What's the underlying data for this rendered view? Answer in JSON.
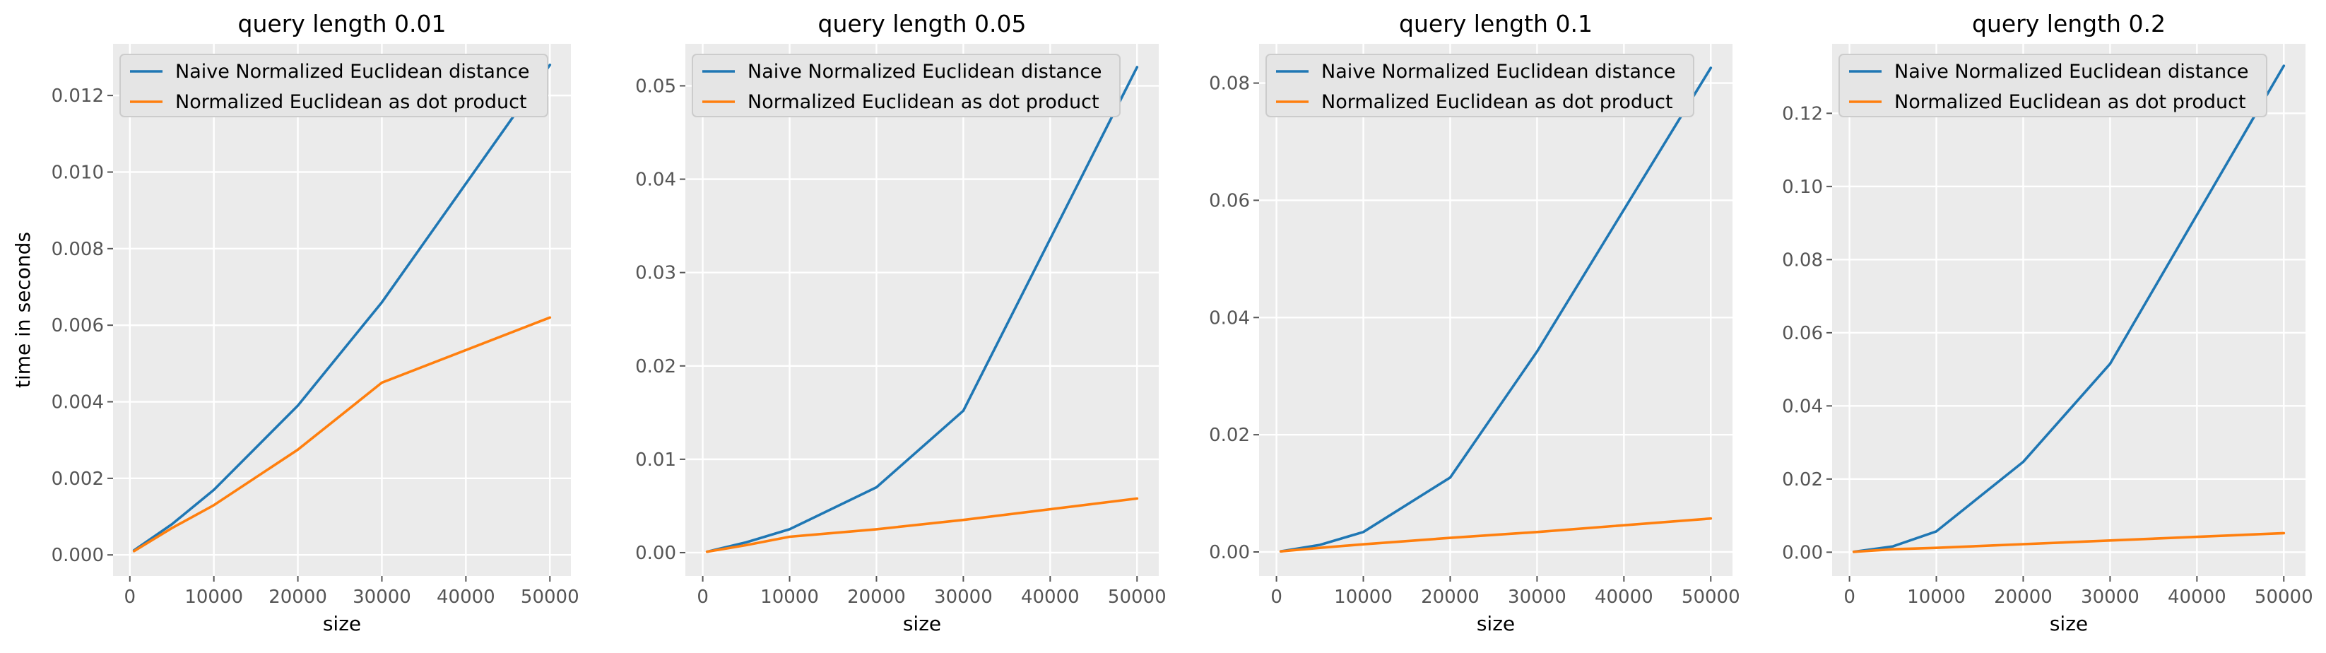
{
  "colors": {
    "naive": "#1f77b4",
    "dot": "#ff7f0e"
  },
  "chart_data": [
    {
      "type": "line",
      "title": "query length 0.01",
      "xlabel": "size",
      "ylabel": "time in seconds",
      "x": [
        500,
        5000,
        10000,
        20000,
        30000,
        50000
      ],
      "xlim": [
        -2000,
        52500
      ],
      "ylim": [
        -0.00055,
        0.01335
      ],
      "xticks": [
        0,
        10000,
        20000,
        30000,
        40000,
        50000
      ],
      "xtick_labels": [
        "0",
        "10000",
        "20000",
        "30000",
        "40000",
        "50000"
      ],
      "yticks": [
        0,
        0.002,
        0.004,
        0.006,
        0.008,
        0.01,
        0.012
      ],
      "ytick_labels": [
        "0.000",
        "0.002",
        "0.004",
        "0.006",
        "0.008",
        "0.010",
        "0.012"
      ],
      "legend_position": "upper-left",
      "grid": true,
      "series": [
        {
          "name": "Naive Normalized Euclidean distance",
          "color_key": "naive",
          "values": [
            0.00012,
            0.0008,
            0.0017,
            0.0039,
            0.0066,
            0.0128
          ]
        },
        {
          "name": "Normalized Euclidean as dot product",
          "color_key": "dot",
          "values": [
            0.0001,
            0.0007,
            0.0013,
            0.00275,
            0.0045,
            0.0062
          ]
        }
      ]
    },
    {
      "type": "line",
      "title": "query length 0.05",
      "xlabel": "size",
      "ylabel": "",
      "x": [
        500,
        5000,
        10000,
        20000,
        30000,
        50000
      ],
      "xlim": [
        -2000,
        52500
      ],
      "ylim": [
        -0.0025,
        0.0545
      ],
      "xticks": [
        0,
        10000,
        20000,
        30000,
        40000,
        50000
      ],
      "xtick_labels": [
        "0",
        "10000",
        "20000",
        "30000",
        "40000",
        "50000"
      ],
      "yticks": [
        0,
        0.01,
        0.02,
        0.03,
        0.04,
        0.05
      ],
      "ytick_labels": [
        "0.00",
        "0.01",
        "0.02",
        "0.03",
        "0.04",
        "0.05"
      ],
      "legend_position": "upper-left",
      "grid": true,
      "series": [
        {
          "name": "Naive Normalized Euclidean distance",
          "color_key": "naive",
          "values": [
            0.0001,
            0.0011,
            0.0025,
            0.007,
            0.0152,
            0.052
          ]
        },
        {
          "name": "Normalized Euclidean as dot product",
          "color_key": "dot",
          "values": [
            0.0001,
            0.0008,
            0.0017,
            0.0025,
            0.0035,
            0.0058
          ]
        }
      ]
    },
    {
      "type": "line",
      "title": "query length 0.1",
      "xlabel": "size",
      "ylabel": "",
      "x": [
        500,
        5000,
        10000,
        20000,
        30000,
        50000
      ],
      "xlim": [
        -2000,
        52500
      ],
      "ylim": [
        -0.0041,
        0.0867
      ],
      "xticks": [
        0,
        10000,
        20000,
        30000,
        40000,
        50000
      ],
      "xtick_labels": [
        "0",
        "10000",
        "20000",
        "30000",
        "40000",
        "50000"
      ],
      "yticks": [
        0,
        0.02,
        0.04,
        0.06,
        0.08
      ],
      "ytick_labels": [
        "0.00",
        "0.02",
        "0.04",
        "0.06",
        "0.08"
      ],
      "legend_position": "upper-left",
      "grid": true,
      "series": [
        {
          "name": "Naive Normalized Euclidean distance",
          "color_key": "naive",
          "values": [
            0.0001,
            0.0012,
            0.0034,
            0.0127,
            0.0342,
            0.0826
          ]
        },
        {
          "name": "Normalized Euclidean as dot product",
          "color_key": "dot",
          "values": [
            0.0001,
            0.0007,
            0.0013,
            0.0024,
            0.0034,
            0.0057
          ]
        }
      ]
    },
    {
      "type": "line",
      "title": "query length 0.2",
      "xlabel": "size",
      "ylabel": "",
      "x": [
        500,
        5000,
        10000,
        20000,
        30000,
        50000
      ],
      "xlim": [
        -2000,
        52500
      ],
      "ylim": [
        -0.0065,
        0.139
      ],
      "xticks": [
        0,
        10000,
        20000,
        30000,
        40000,
        50000
      ],
      "xtick_labels": [
        "0",
        "10000",
        "20000",
        "30000",
        "40000",
        "50000"
      ],
      "yticks": [
        0,
        0.02,
        0.04,
        0.06,
        0.08,
        0.1,
        0.12
      ],
      "ytick_labels": [
        "0.00",
        "0.02",
        "0.04",
        "0.06",
        "0.08",
        "0.10",
        "0.12"
      ],
      "legend_position": "upper-left",
      "grid": true,
      "series": [
        {
          "name": "Naive Normalized Euclidean distance",
          "color_key": "naive",
          "values": [
            0.0001,
            0.0016,
            0.0057,
            0.0247,
            0.0515,
            0.133
          ]
        },
        {
          "name": "Normalized Euclidean as dot product",
          "color_key": "dot",
          "values": [
            0.0001,
            0.0008,
            0.0012,
            0.0022,
            0.0032,
            0.0052
          ]
        }
      ]
    }
  ]
}
